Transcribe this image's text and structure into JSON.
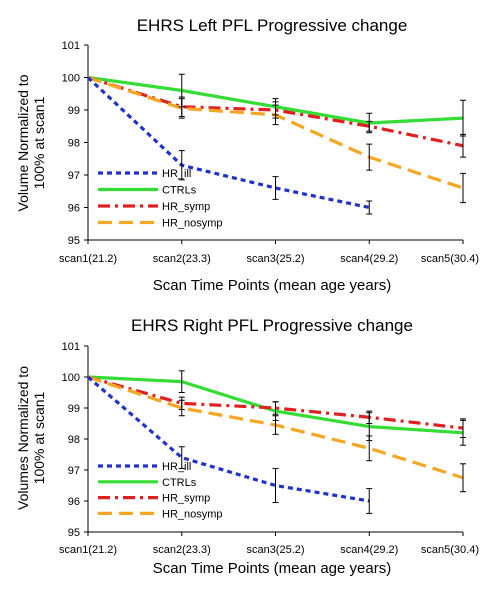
{
  "chart_data": [
    {
      "type": "line",
      "title": "EHRS Left PFL Progressive change",
      "xlabel": "Scan Time Points (mean age years)",
      "ylabel_lines": [
        "Volume Normalized to",
        "100% at scan1"
      ],
      "categories": [
        "scan1(21.2)",
        "scan2(23.3)",
        "scan3(25.2)",
        "scan4(29.2)",
        "scan5(30.4)"
      ],
      "ylim": [
        95,
        101
      ],
      "yticks": [
        95,
        96,
        97,
        98,
        99,
        100,
        101
      ],
      "grid": false,
      "legend_position": "bottom-left",
      "series": [
        {
          "name": "HR_ill",
          "color": "#1f33cc",
          "style": "dotted",
          "values": [
            100,
            97.3,
            96.6,
            96.0,
            null
          ],
          "errors": [
            null,
            0.45,
            0.35,
            0.2,
            null
          ]
        },
        {
          "name": "CTRLs",
          "color": "#33dd33",
          "style": "solid",
          "values": [
            100,
            99.6,
            99.1,
            98.6,
            98.75
          ],
          "errors": [
            null,
            0.5,
            0.25,
            0.3,
            0.55
          ]
        },
        {
          "name": "HR_symp",
          "color": "#e02020",
          "style": "dashdot",
          "values": [
            100,
            99.1,
            99.0,
            98.5,
            97.9
          ],
          "errors": [
            null,
            0.3,
            0.25,
            0.15,
            0.35
          ]
        },
        {
          "name": "HR_nosymp",
          "color": "#f5a623",
          "style": "dashed",
          "values": [
            100,
            99.05,
            98.85,
            97.55,
            96.6
          ],
          "errors": [
            null,
            0.3,
            0.3,
            0.4,
            0.45
          ]
        }
      ]
    },
    {
      "type": "line",
      "title": "EHRS Right PFL Progressive change",
      "xlabel": "Scan Time Points (mean age years)",
      "ylabel_lines": [
        "Volumes Normalized to",
        "100% at scan1"
      ],
      "categories": [
        "scan1(21.2)",
        "scan2(23.3)",
        "scan3(25.2)",
        "scan4(29.2)",
        "scan5(30.4)"
      ],
      "ylim": [
        95,
        101
      ],
      "yticks": [
        95,
        96,
        97,
        98,
        99,
        100,
        101
      ],
      "grid": false,
      "legend_position": "bottom-left",
      "series": [
        {
          "name": "HR_ill",
          "color": "#1f33cc",
          "style": "dotted",
          "values": [
            100,
            97.4,
            96.5,
            96.0,
            null
          ],
          "errors": [
            null,
            0.35,
            0.55,
            0.4,
            null
          ]
        },
        {
          "name": "CTRLs",
          "color": "#33dd33",
          "style": "solid",
          "values": [
            100,
            99.85,
            98.9,
            98.4,
            98.2
          ],
          "errors": [
            null,
            0.35,
            0.3,
            0.45,
            0.4
          ]
        },
        {
          "name": "HR_symp",
          "color": "#e02020",
          "style": "dashdot",
          "values": [
            100,
            99.15,
            99.0,
            98.7,
            98.35
          ],
          "errors": [
            null,
            0.2,
            0.2,
            0.2,
            0.3
          ]
        },
        {
          "name": "HR_nosymp",
          "color": "#f5a623",
          "style": "dashed",
          "values": [
            100,
            99.0,
            98.45,
            97.7,
            96.75
          ],
          "errors": [
            null,
            0.25,
            0.3,
            0.4,
            0.45
          ]
        }
      ]
    }
  ]
}
